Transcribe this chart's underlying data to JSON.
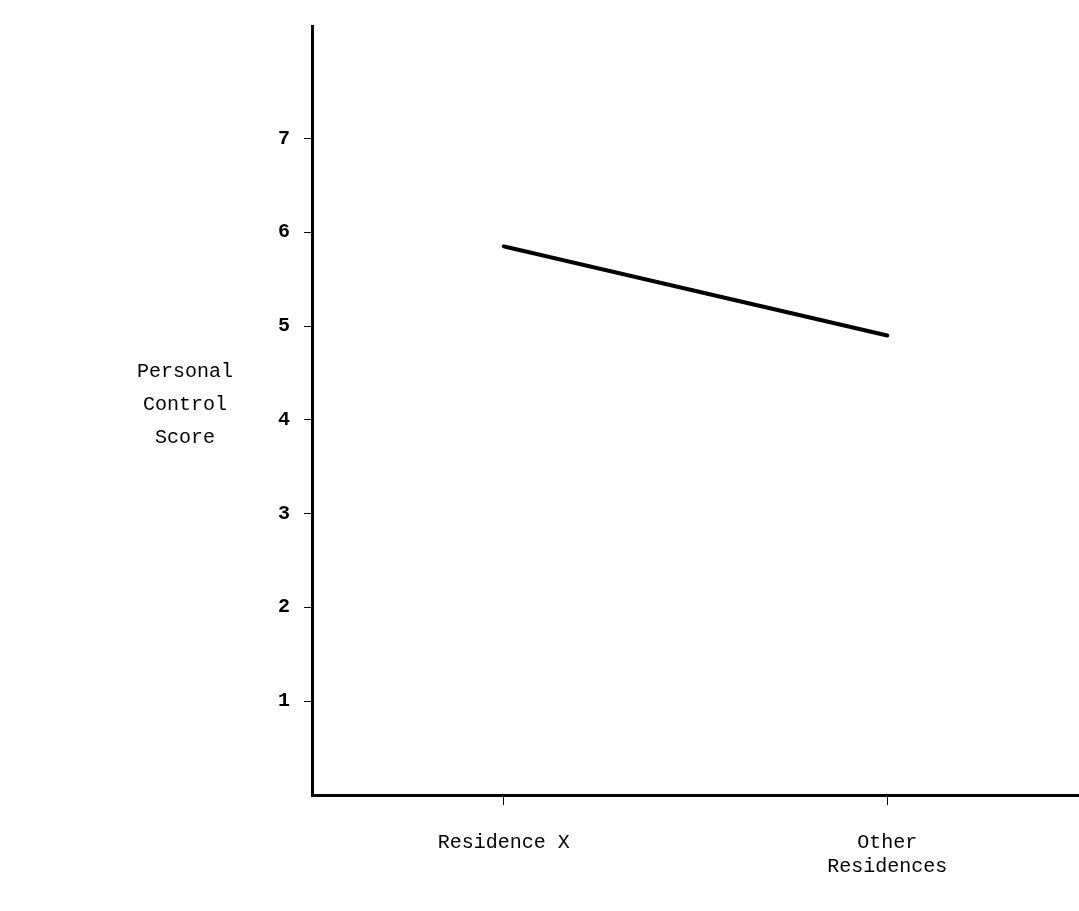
{
  "chart_data": {
    "type": "line",
    "ylabel": "Personal Control Score",
    "categories": [
      "Residence X",
      "Other Residences"
    ],
    "series": [
      {
        "color": "#000000",
        "values": [
          5.85,
          4.9
        ]
      }
    ],
    "ylim": [
      0,
      8.2
    ],
    "yticks": [
      1,
      2,
      3,
      4,
      5,
      6,
      7
    ],
    "grid": false,
    "legend": false,
    "marker": "none",
    "line_style": "solid"
  }
}
